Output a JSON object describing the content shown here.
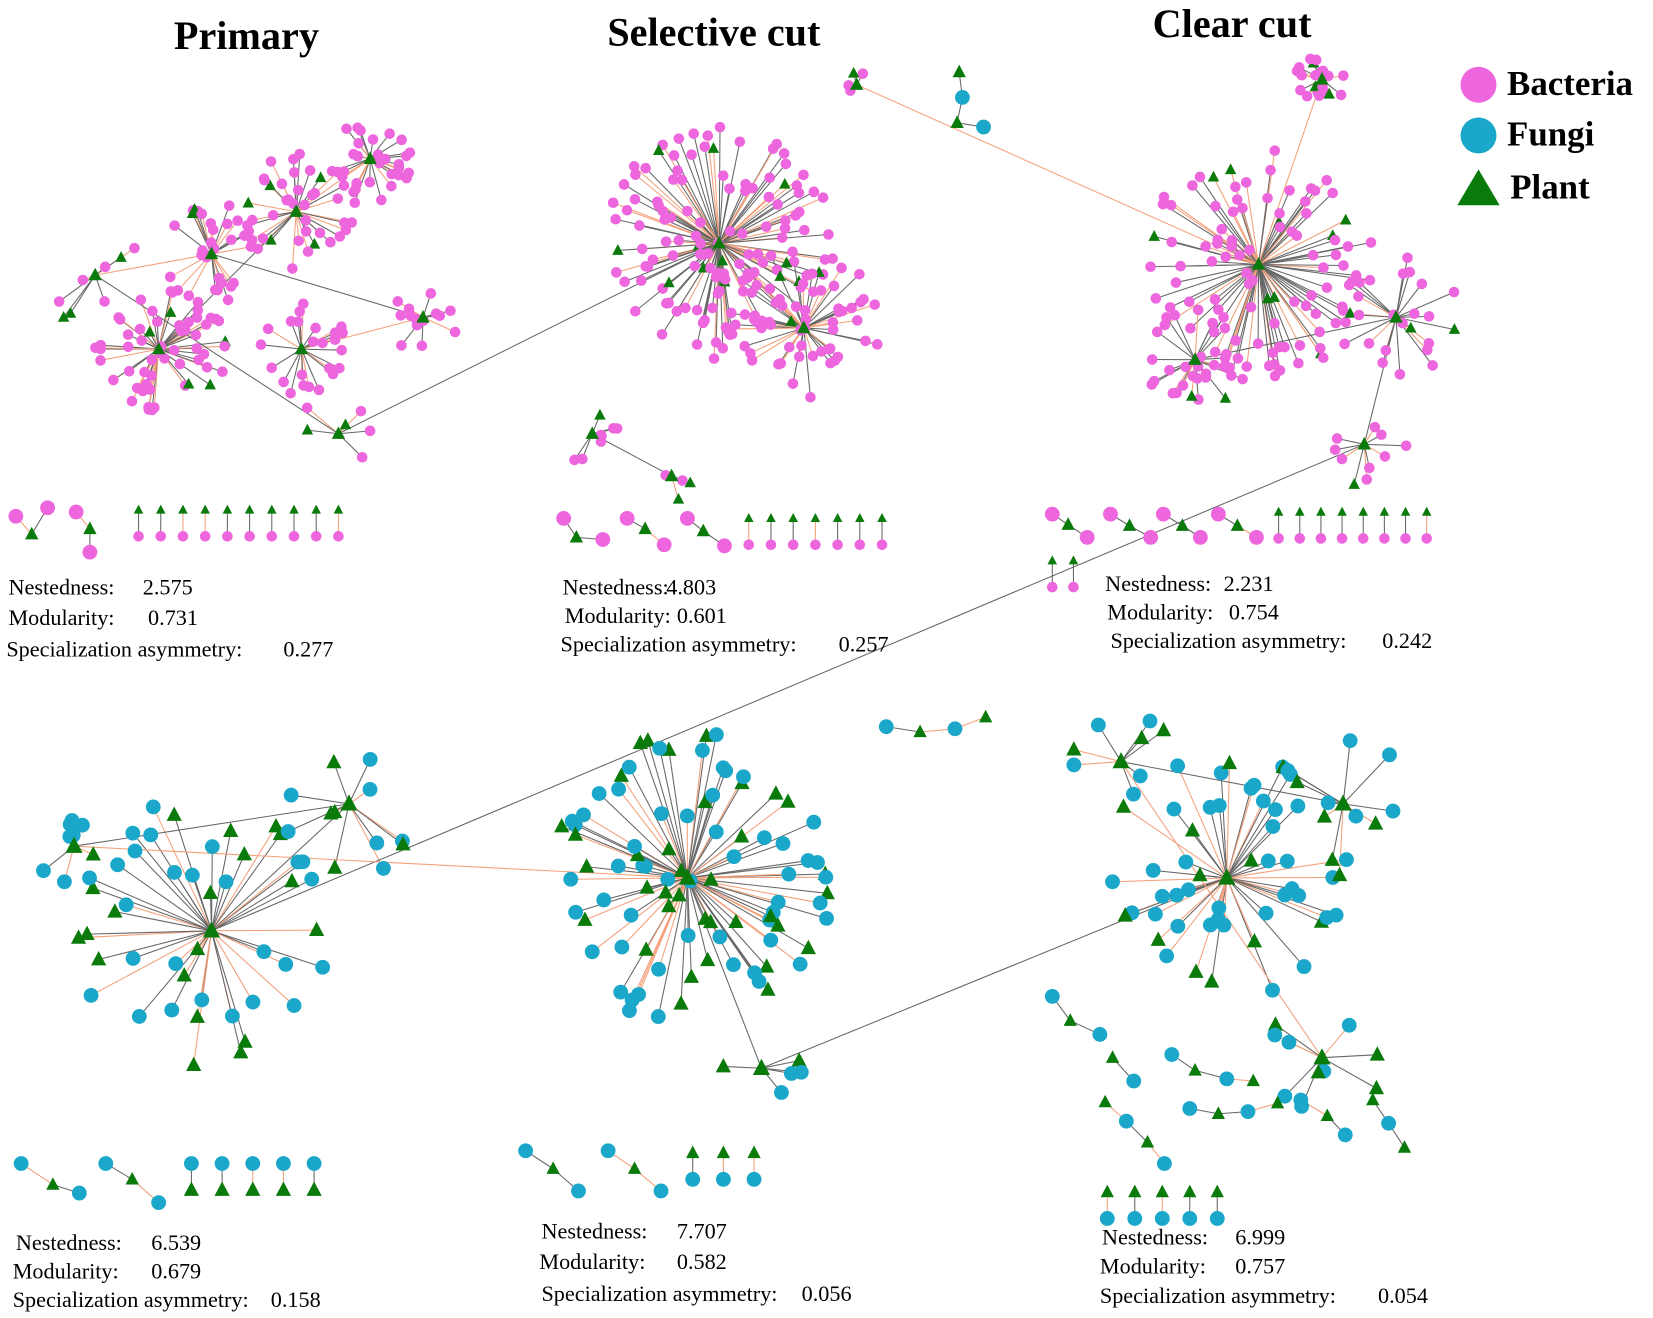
{
  "columns": [
    "Primary",
    "Selective cut",
    "Clear cut"
  ],
  "legend": [
    "Bacteria",
    "Fungi",
    "Plant"
  ],
  "metric_labels": [
    "Nestedness:",
    "Modularity:",
    "Specialization asymmetry:"
  ],
  "panels": [
    {
      "metrics": [
        2.575,
        0.731,
        0.277
      ]
    },
    {
      "metrics": [
        4.803,
        0.601,
        0.257
      ]
    },
    {
      "metrics": [
        2.231,
        0.754,
        0.242
      ]
    },
    {
      "metrics": [
        6.539,
        0.679,
        0.158
      ]
    },
    {
      "metrics": [
        7.707,
        0.582,
        0.056
      ]
    },
    {
      "metrics": [
        6.999,
        0.757,
        0.054
      ]
    }
  ]
}
